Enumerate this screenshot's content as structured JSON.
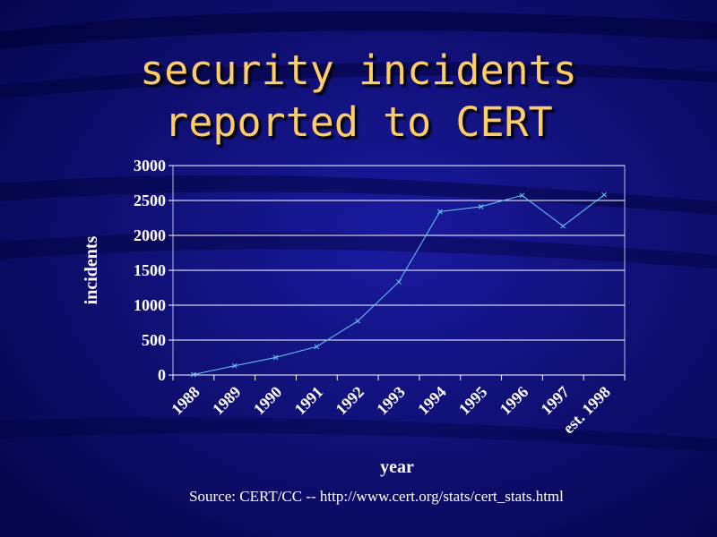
{
  "slide": {
    "title_line1": "security incidents",
    "title_line2": "reported to CERT",
    "source": "Source: CERT/CC -- http://www.cert.org/stats/cert_stats.html"
  },
  "colors": {
    "background": "#0a0a6e",
    "title": "#ffcc66",
    "line": "#66ccff",
    "axis": "#ffffff"
  },
  "chart_data": {
    "type": "line",
    "title": "",
    "xlabel": "year",
    "ylabel": "incidents",
    "categories": [
      "1988",
      "1989",
      "1990",
      "1991",
      "1992",
      "1993",
      "1994",
      "1995",
      "1996",
      "1997",
      "est. 1998"
    ],
    "series": [
      {
        "values": [
          6,
          132,
          252,
          406,
          773,
          1334,
          2340,
          2412,
          2573,
          2134,
          2580
        ]
      }
    ],
    "ylim": [
      0,
      3000
    ],
    "yticks": [
      0,
      500,
      1000,
      1500,
      2000,
      2500,
      3000
    ],
    "grid": true,
    "legend": "none"
  }
}
